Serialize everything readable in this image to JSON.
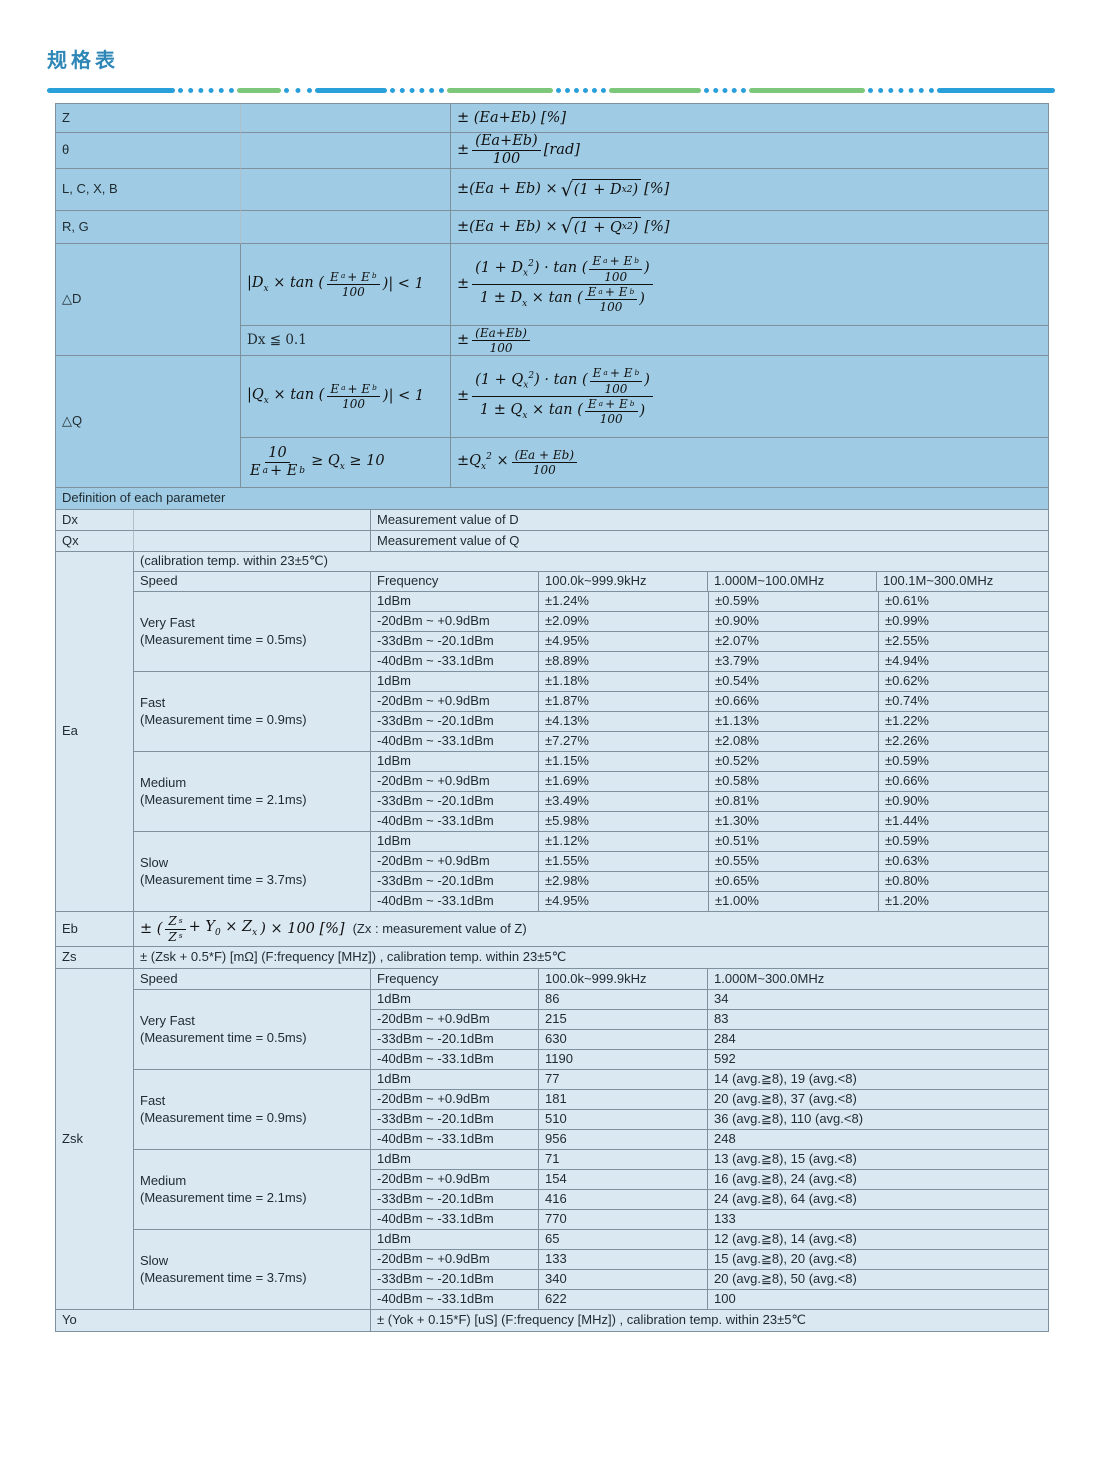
{
  "page": {
    "title": "规格表"
  },
  "colors": {
    "accent_blue": "#2aa0db",
    "accent_green": "#7dc77d",
    "header_fill": "#9fcce4",
    "row_fill": "#dae8f2",
    "border": "#7e919c",
    "title_text": "#2e87b7"
  },
  "icons": {
    "sqrt": "√"
  },
  "params": {
    "z": {
      "label": "Z",
      "formula": "± (Ea+Eb) [%]"
    },
    "theta": {
      "label": "θ",
      "pm": "±",
      "num": "(Ea+Eb)",
      "den": "100",
      "suffix": "[rad]"
    },
    "lcxb": {
      "label": "L, C, X, B",
      "lead": "±(Ea + Eb) ×",
      "radicand": "(1 + D_{x}^{2})",
      "suffix": "[%]"
    },
    "rg": {
      "label": "R, G",
      "lead": "±(Ea + Eb) ×",
      "radicand": "(1 + Q_{x}^{2})",
      "suffix": "[%]"
    },
    "delta_d": {
      "label": "△D",
      "cond1": {
        "pre": "|D_{x} × tan (",
        "num": "E_{a} + E_{b}",
        "den": "100",
        "post": ")| < 1"
      },
      "res1": {
        "pm": "±",
        "num_pre": "(1 + D_{x}^{2}) · tan (",
        "inner_num": "E_{a} + E_{b}",
        "inner_den": "100",
        "num_post": ")",
        "den_pre": "1 ± D_{x} × tan (",
        "den_post": ")"
      },
      "cond2": "Dx ≦ 0.1",
      "res2": {
        "pm": "±",
        "num": "(Ea+Eb)",
        "den": "100"
      }
    },
    "delta_q": {
      "label": "△Q",
      "cond1": {
        "pre": "|Q_{x} × tan (",
        "num": "E_{a} + E_{b}",
        "den": "100",
        "post": ")| < 1"
      },
      "res1": {
        "pm": "±",
        "num_pre": "(1 + Q_{x}^{2}) · tan (",
        "inner_num": "E_{a} + E_{b}",
        "inner_den": "100",
        "num_post": ")",
        "den_pre": "1 ± Q_{x} × tan (",
        "den_post": ")"
      },
      "cond2": {
        "num": "10",
        "den": "E_{a} + E_{b}",
        "post": "≥ Q_{x} ≥ 10"
      },
      "res2": {
        "pre": "±Q_{x}^{2} ×",
        "num": "(Ea + Eb)",
        "den": "100"
      }
    }
  },
  "definition_header": "Definition of each parameter",
  "dx": {
    "label": "Dx",
    "value": "Measurement value of D"
  },
  "qx": {
    "label": "Qx",
    "value": "Measurement value of Q"
  },
  "ea": {
    "label": "Ea",
    "note": "(calibration temp. within 23±5℃)",
    "headers": [
      "Speed",
      "Frequency",
      "100.0k~999.9kHz",
      "1.000M~100.0MHz",
      "100.1M~300.0MHz"
    ],
    "groups": [
      {
        "name": "Very Fast",
        "time": "(Measurement time = 0.5ms)",
        "rows": [
          {
            "range": "1dBm",
            "values": [
              "±1.24%",
              "±0.59%",
              "±0.61%"
            ]
          },
          {
            "range": "-20dBm ~ +0.9dBm",
            "values": [
              "±2.09%",
              "±0.90%",
              "±0.99%"
            ]
          },
          {
            "range": "-33dBm ~ -20.1dBm",
            "values": [
              "±4.95%",
              "±2.07%",
              "±2.55%"
            ]
          },
          {
            "range": "-40dBm ~ -33.1dBm",
            "values": [
              "±8.89%",
              "±3.79%",
              "±4.94%"
            ]
          }
        ]
      },
      {
        "name": "Fast",
        "time": "(Measurement time = 0.9ms)",
        "rows": [
          {
            "range": "1dBm",
            "values": [
              "±1.18%",
              "±0.54%",
              "±0.62%"
            ]
          },
          {
            "range": "-20dBm ~ +0.9dBm",
            "values": [
              "±1.87%",
              "±0.66%",
              "±0.74%"
            ]
          },
          {
            "range": "-33dBm ~ -20.1dBm",
            "values": [
              "±4.13%",
              "±1.13%",
              "±1.22%"
            ]
          },
          {
            "range": "-40dBm ~ -33.1dBm",
            "values": [
              "±7.27%",
              "±2.08%",
              "±2.26%"
            ]
          }
        ]
      },
      {
        "name": "Medium",
        "time": "(Measurement time = 2.1ms)",
        "rows": [
          {
            "range": "1dBm",
            "values": [
              "±1.15%",
              "±0.52%",
              "±0.59%"
            ]
          },
          {
            "range": "-20dBm ~ +0.9dBm",
            "values": [
              "±1.69%",
              "±0.58%",
              "±0.66%"
            ]
          },
          {
            "range": "-33dBm ~ -20.1dBm",
            "values": [
              "±3.49%",
              "±0.81%",
              "±0.90%"
            ]
          },
          {
            "range": "-40dBm ~ -33.1dBm",
            "values": [
              "±5.98%",
              "±1.30%",
              "±1.44%"
            ]
          }
        ]
      },
      {
        "name": "Slow",
        "time": "(Measurement time = 3.7ms)",
        "rows": [
          {
            "range": "1dBm",
            "values": [
              "±1.12%",
              "±0.51%",
              "±0.59%"
            ]
          },
          {
            "range": "-20dBm ~ +0.9dBm",
            "values": [
              "±1.55%",
              "±0.55%",
              "±0.63%"
            ]
          },
          {
            "range": "-33dBm ~ -20.1dBm",
            "values": [
              "±2.98%",
              "±0.65%",
              "±0.80%"
            ]
          },
          {
            "range": "-40dBm ~ -33.1dBm",
            "values": [
              "±4.95%",
              "±1.00%",
              "±1.20%"
            ]
          }
        ]
      }
    ]
  },
  "eb": {
    "label": "Eb",
    "pre": "± (",
    "num": "Z_{s}",
    "den": "Z_{s}",
    "mid": "+ Y_{0} × Z_{x}",
    "post": ") × 100 [%]",
    "note": "(Zx : measurement value of Z)"
  },
  "zs": {
    "label": "Zs",
    "text": "± (Zsk + 0.5*F) [mΩ] (F:frequency [MHz]) , calibration temp. within 23±5℃"
  },
  "zsk": {
    "label": "Zsk",
    "headers": [
      "Speed",
      "Frequency",
      "100.0k~999.9kHz",
      "1.000M~300.0MHz"
    ],
    "groups": [
      {
        "name": "Very Fast",
        "time": "(Measurement time = 0.5ms)",
        "rows": [
          {
            "range": "1dBm",
            "values": [
              "86",
              "34"
            ]
          },
          {
            "range": "-20dBm ~ +0.9dBm",
            "values": [
              "215",
              "83"
            ]
          },
          {
            "range": "-33dBm ~ -20.1dBm",
            "values": [
              "630",
              "284"
            ]
          },
          {
            "range": "-40dBm ~ -33.1dBm",
            "values": [
              "1190",
              "592"
            ]
          }
        ]
      },
      {
        "name": "Fast",
        "time": "(Measurement time = 0.9ms)",
        "rows": [
          {
            "range": "1dBm",
            "values": [
              "77",
              "14 (avg.≧8), 19 (avg.<8)"
            ]
          },
          {
            "range": "-20dBm ~ +0.9dBm",
            "values": [
              "181",
              "20 (avg.≧8), 37 (avg.<8)"
            ]
          },
          {
            "range": "-33dBm ~ -20.1dBm",
            "values": [
              "510",
              "36 (avg.≧8), 110 (avg.<8)"
            ]
          },
          {
            "range": "-40dBm ~ -33.1dBm",
            "values": [
              "956",
              "248"
            ]
          }
        ]
      },
      {
        "name": "Medium",
        "time": "(Measurement time = 2.1ms)",
        "rows": [
          {
            "range": "1dBm",
            "values": [
              "71",
              "13 (avg.≧8), 15 (avg.<8)"
            ]
          },
          {
            "range": "-20dBm ~ +0.9dBm",
            "values": [
              "154",
              "16 (avg.≧8), 24 (avg.<8)"
            ]
          },
          {
            "range": "-33dBm ~ -20.1dBm",
            "values": [
              "416",
              "24 (avg.≧8), 64 (avg.<8)"
            ]
          },
          {
            "range": "-40dBm ~ -33.1dBm",
            "values": [
              "770",
              "133"
            ]
          }
        ]
      },
      {
        "name": "Slow",
        "time": "(Measurement time = 3.7ms)",
        "rows": [
          {
            "range": "1dBm",
            "values": [
              "65",
              "12 (avg.≧8), 14 (avg.<8)"
            ]
          },
          {
            "range": "-20dBm ~ +0.9dBm",
            "values": [
              "133",
              "15 (avg.≧8), 20 (avg.<8)"
            ]
          },
          {
            "range": "-33dBm ~ -20.1dBm",
            "values": [
              "340",
              "20 (avg.≧8), 50 (avg.<8)"
            ]
          },
          {
            "range": "-40dBm ~ -33.1dBm",
            "values": [
              "622",
              "100"
            ]
          }
        ]
      }
    ]
  },
  "yo": {
    "label": "Yo",
    "text": "± (Yok + 0.15*F) [uS] (F:frequency [MHz]) , calibration temp. within 23±5℃"
  }
}
